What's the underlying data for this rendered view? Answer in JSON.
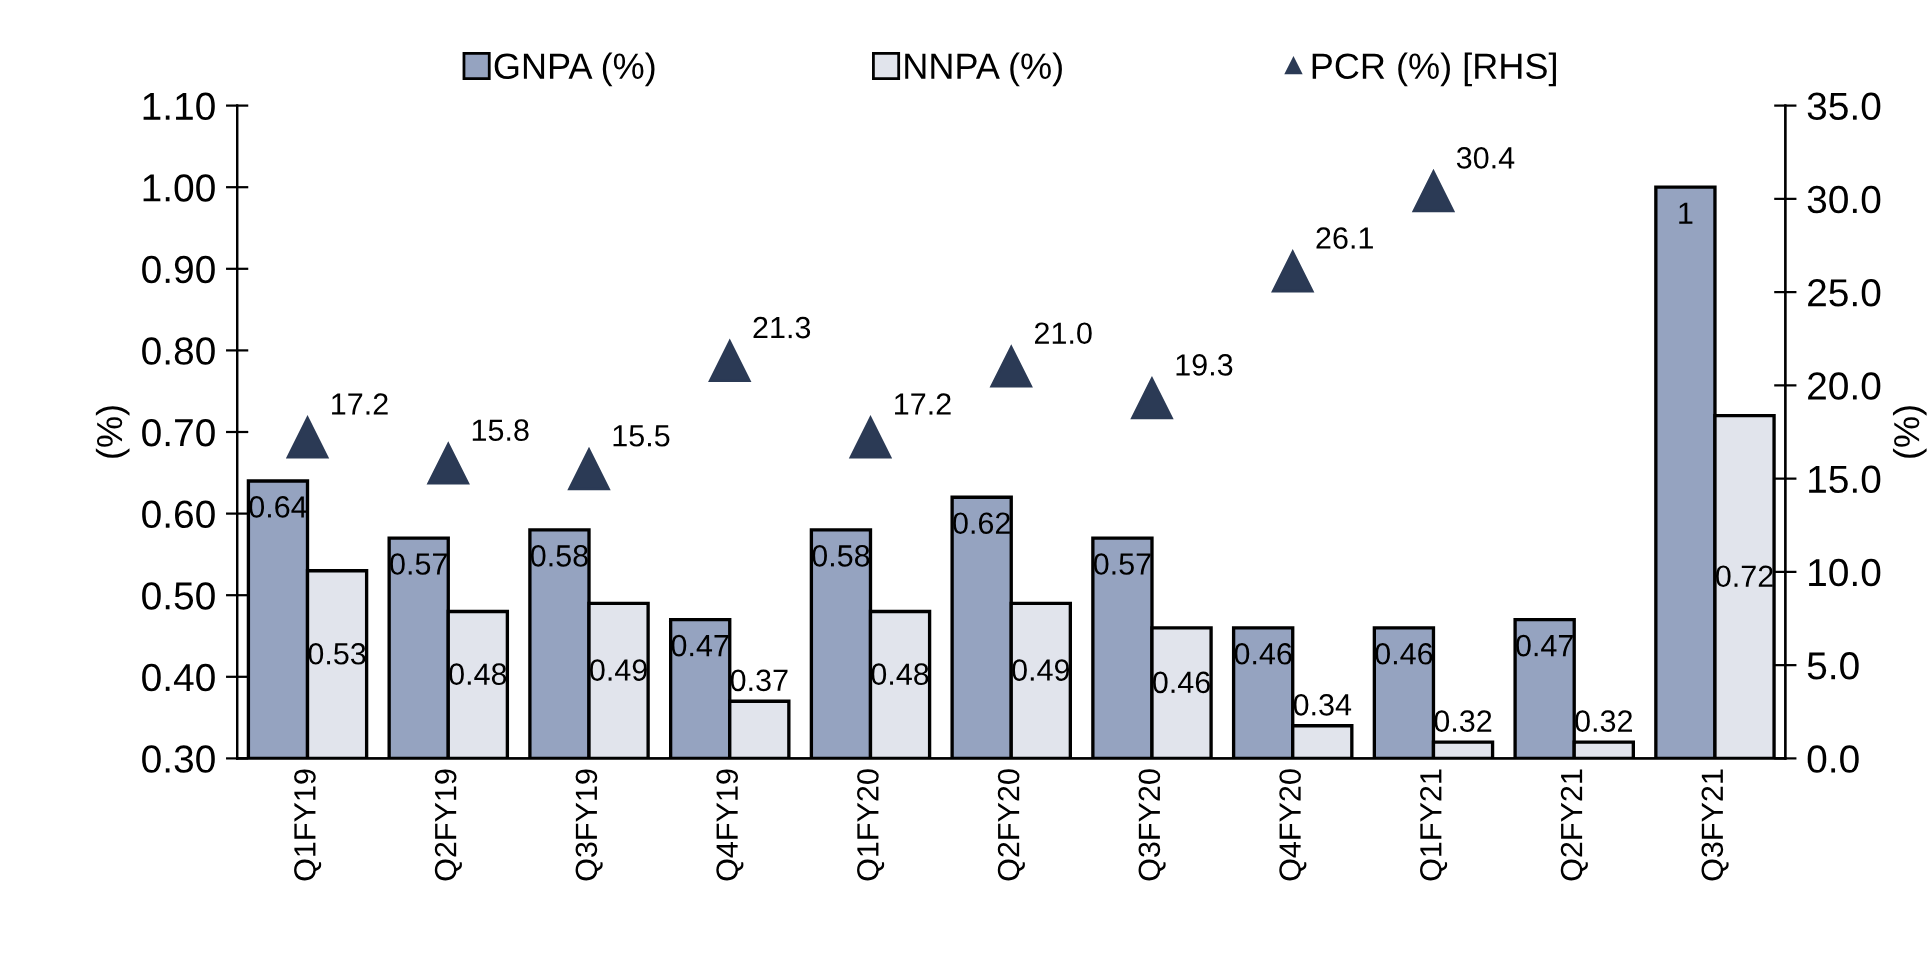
{
  "chart_data": {
    "type": "bar",
    "ylabel": "(%)",
    "y2label": "(%)",
    "categories": [
      "Q1FY19",
      "Q2FY19",
      "Q3FY19",
      "Q4FY19",
      "Q1FY20",
      "Q2FY20",
      "Q3FY20",
      "Q4FY20",
      "Q1FY21",
      "Q2FY21",
      "Q3FY21"
    ],
    "series": [
      {
        "name": "GNPA (%)",
        "color": "#95a3c0",
        "values": [
          0.64,
          0.57,
          0.58,
          0.47,
          0.58,
          0.62,
          0.57,
          0.46,
          0.46,
          0.47,
          1.0
        ],
        "value_labels": [
          "0.64",
          "0.57",
          "0.58",
          "0.47",
          "0.58",
          "0.62",
          "0.57",
          "0.46",
          "0.46",
          "0.47",
          "1"
        ]
      },
      {
        "name": "NNPA (%)",
        "color": "#e1e4ec",
        "values": [
          0.53,
          0.48,
          0.49,
          0.37,
          0.48,
          0.49,
          0.46,
          0.34,
          0.32,
          0.32,
          0.72
        ],
        "value_labels": [
          "0.53",
          "0.48",
          "0.49",
          "0.37",
          "0.48",
          "0.49",
          "0.46",
          "0.34",
          "0.32",
          "0.32",
          "0.72"
        ]
      },
      {
        "name": "PCR (%) [RHS]",
        "type": "scatter",
        "axis": "y2",
        "marker": "triangle",
        "color": "#2b3a55",
        "values": [
          17.2,
          15.8,
          15.5,
          21.3,
          17.2,
          21.0,
          19.3,
          26.1,
          30.4,
          null,
          null
        ],
        "value_labels": [
          "17.2",
          "15.8",
          "15.5",
          "21.3",
          "17.2",
          "21.0",
          "19.3",
          "26.1",
          "30.4",
          null,
          null
        ]
      }
    ],
    "ylim": [
      0.3,
      1.1
    ],
    "yticks": [
      {
        "value": 0.3,
        "label": "0.30"
      },
      {
        "value": 0.4,
        "label": "0.40"
      },
      {
        "value": 0.5,
        "label": "0.50"
      },
      {
        "value": 0.6,
        "label": "0.60"
      },
      {
        "value": 0.7,
        "label": "0.70"
      },
      {
        "value": 0.8,
        "label": "0.80"
      },
      {
        "value": 0.9,
        "label": "0.90"
      },
      {
        "value": 1.0,
        "label": "1.00"
      },
      {
        "value": 1.1,
        "label": "1.10"
      }
    ],
    "y2lim": [
      0,
      35
    ],
    "y2ticks": [
      {
        "value": 0,
        "label": "0.0"
      },
      {
        "value": 5,
        "label": "5.0"
      },
      {
        "value": 10,
        "label": "10.0"
      },
      {
        "value": 15,
        "label": "15.0"
      },
      {
        "value": 20,
        "label": "20.0"
      },
      {
        "value": 25,
        "label": "25.0"
      },
      {
        "value": 30,
        "label": "30.0"
      },
      {
        "value": 35,
        "label": "35.0"
      }
    ],
    "legend": "top",
    "grid": false
  }
}
